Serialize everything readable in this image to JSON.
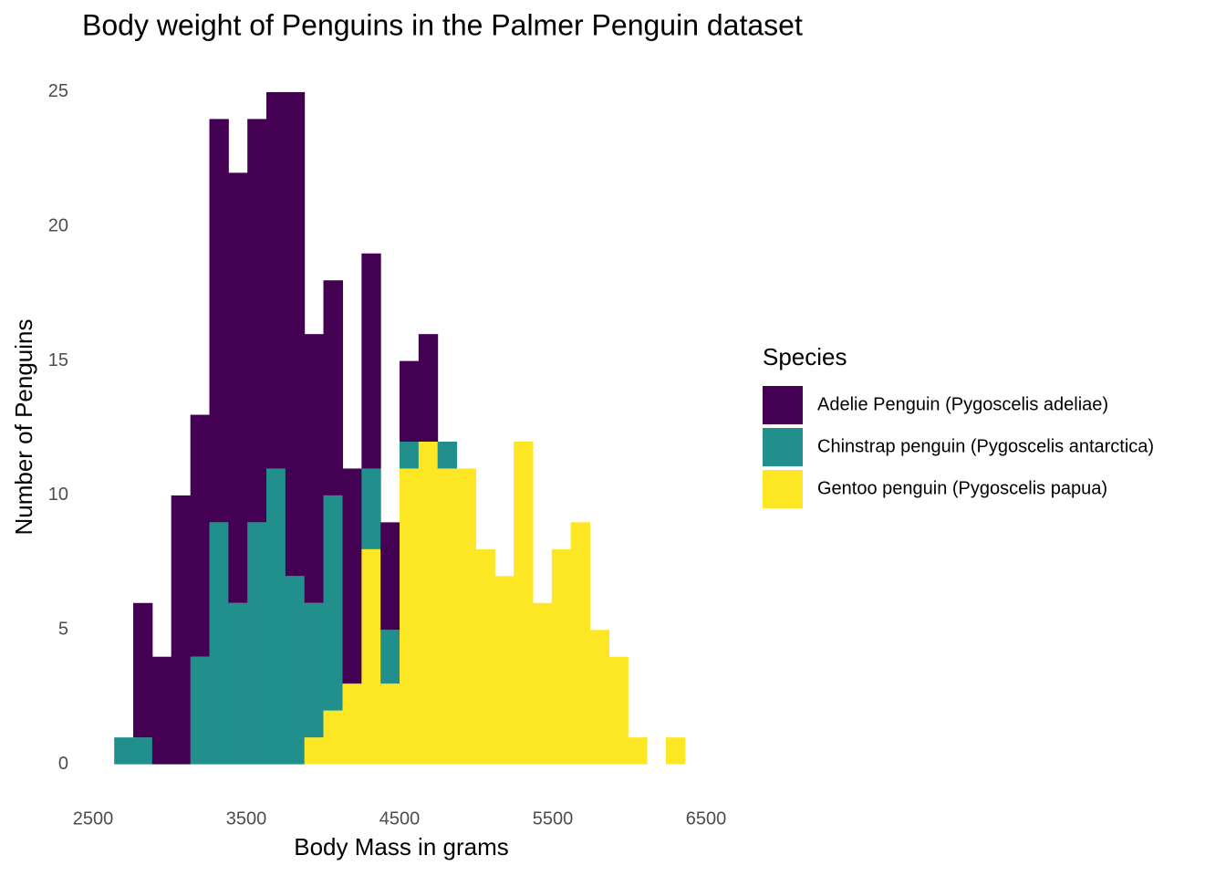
{
  "chart_data": {
    "type": "histogram",
    "title": "Body weight of Penguins in the Palmer Penguin dataset",
    "x_label": "Body Mass in grams",
    "y_label": "Number of Penguins",
    "legend_title": "Species",
    "legend_position": "right",
    "grid": false,
    "stacked": true,
    "bins": [
      2638,
      2762,
      2886,
      3010,
      3135,
      3259,
      3383,
      3507,
      3631,
      3755,
      3879,
      4003,
      4128,
      4252,
      4376,
      4500,
      4624,
      4748,
      4872,
      4997,
      5121,
      5245,
      5369,
      5493,
      5617,
      5741,
      5866,
      5990,
      6114,
      6238,
      6362
    ],
    "series": [
      {
        "name": "Adelie Penguin (Pygoscelis adeliae)",
        "color": "#440154",
        "values": [
          0,
          5,
          4,
          10,
          9,
          15,
          16,
          15,
          14,
          18,
          10,
          8,
          8,
          8,
          4,
          3,
          4,
          0,
          0,
          0,
          0,
          0,
          0,
          0,
          0,
          0,
          0,
          0,
          0,
          0
        ]
      },
      {
        "name": "Chinstrap penguin (Pygoscelis antarctica)",
        "color": "#21908C",
        "values": [
          1,
          1,
          0,
          0,
          4,
          9,
          6,
          9,
          11,
          7,
          5,
          8,
          0,
          3,
          2,
          1,
          0,
          1,
          0,
          0,
          0,
          0,
          0,
          0,
          0,
          0,
          0,
          0,
          0,
          0
        ]
      },
      {
        "name": "Gentoo penguin (Pygoscelis papua)",
        "color": "#FDE725",
        "values": [
          0,
          0,
          0,
          0,
          0,
          0,
          0,
          0,
          0,
          0,
          1,
          2,
          3,
          8,
          3,
          11,
          12,
          11,
          11,
          8,
          7,
          12,
          6,
          8,
          9,
          5,
          4,
          1,
          0,
          1
        ]
      }
    ],
    "xlim": [
      2369,
      6595
    ],
    "xticks": [
      2500,
      3500,
      4500,
      5500,
      6500
    ],
    "ylim": [
      -1.1,
      26.05
    ],
    "yticks": [
      0,
      5,
      10,
      15,
      20,
      25
    ]
  }
}
